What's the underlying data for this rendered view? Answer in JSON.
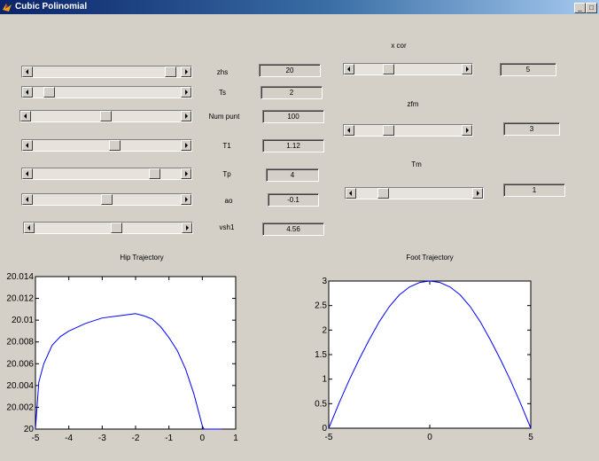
{
  "window": {
    "title": "Cubic Polinomial",
    "minimize_glyph": "_",
    "maximize_glyph": "□"
  },
  "controls": [
    {
      "id": "zhs",
      "label": "zhs",
      "value": "20",
      "fraction": 0.97
    },
    {
      "id": "ts",
      "label": "Ts",
      "value": "2",
      "fraction": 0.08
    },
    {
      "id": "num_punt",
      "label": "Num punt",
      "value": "100",
      "fraction": 0.5
    },
    {
      "id": "t1",
      "label": "T1",
      "value": "1.12",
      "fraction": 0.56
    },
    {
      "id": "tp",
      "label": "Tp",
      "value": "4",
      "fraction": 0.85
    },
    {
      "id": "ao",
      "label": "ao",
      "value": "-0.1",
      "fraction": 0.5
    },
    {
      "id": "vsh1",
      "label": "vsh1",
      "value": "4.56",
      "fraction": 0.56
    },
    {
      "id": "x_cor",
      "label": "x cor",
      "value": "5",
      "fraction": 0.3
    },
    {
      "id": "zfm",
      "label": "zfm",
      "value": "3",
      "fraction": 0.3
    },
    {
      "id": "tm",
      "label": "Tm",
      "value": "1",
      "fraction": 0.2
    }
  ],
  "chart_data": [
    {
      "type": "line",
      "title": "Hip Trajectory",
      "xlim": [
        -5,
        1
      ],
      "ylim": [
        20,
        20.014
      ],
      "xticks": [
        -5,
        -4,
        -3,
        -2,
        -1,
        0,
        1
      ],
      "yticks": [
        20,
        20.002,
        20.004,
        20.006,
        20.008,
        20.01,
        20.012,
        20.014
      ],
      "ytick_labels": [
        "20",
        "20.002",
        "20.004",
        "20.006",
        "20.008",
        "20.01",
        "20.012",
        "20.014"
      ],
      "color": "#0000ff",
      "x": [
        -5,
        -4.9,
        -4.75,
        -4.5,
        -4.25,
        -4,
        -3.5,
        -3,
        -2.5,
        -2,
        -1.75,
        -1.5,
        -1.25,
        -1,
        -0.75,
        -0.5,
        -0.25,
        0,
        0.05,
        0.6
      ],
      "y": [
        20.0,
        20.0043,
        20.006,
        20.0077,
        20.0085,
        20.009,
        20.0097,
        20.0102,
        20.0104,
        20.0106,
        20.0104,
        20.0101,
        20.0094,
        20.0084,
        20.0072,
        20.0055,
        20.0032,
        20.0003,
        20.0,
        20.0
      ]
    },
    {
      "type": "line",
      "title": "Foot Trajectory",
      "xlim": [
        -5,
        5
      ],
      "ylim": [
        0,
        3
      ],
      "xticks": [
        -5,
        0,
        5
      ],
      "yticks": [
        0,
        0.5,
        1,
        1.5,
        2,
        2.5,
        3
      ],
      "ytick_labels": [
        "0",
        "0.5",
        "1",
        "1.5",
        "2",
        "2.5",
        "3"
      ],
      "color": "#0000ff",
      "x": [
        -5,
        -4.5,
        -4,
        -3.5,
        -3,
        -2.5,
        -2,
        -1.5,
        -1,
        -0.5,
        0,
        0.5,
        1,
        1.5,
        2,
        2.5,
        3,
        3.5,
        4,
        4.5,
        5
      ],
      "y": [
        0,
        0.5,
        0.97,
        1.4,
        1.8,
        2.17,
        2.48,
        2.72,
        2.88,
        2.97,
        3.0,
        2.97,
        2.88,
        2.72,
        2.48,
        2.17,
        1.8,
        1.4,
        0.97,
        0.5,
        0
      ]
    }
  ]
}
